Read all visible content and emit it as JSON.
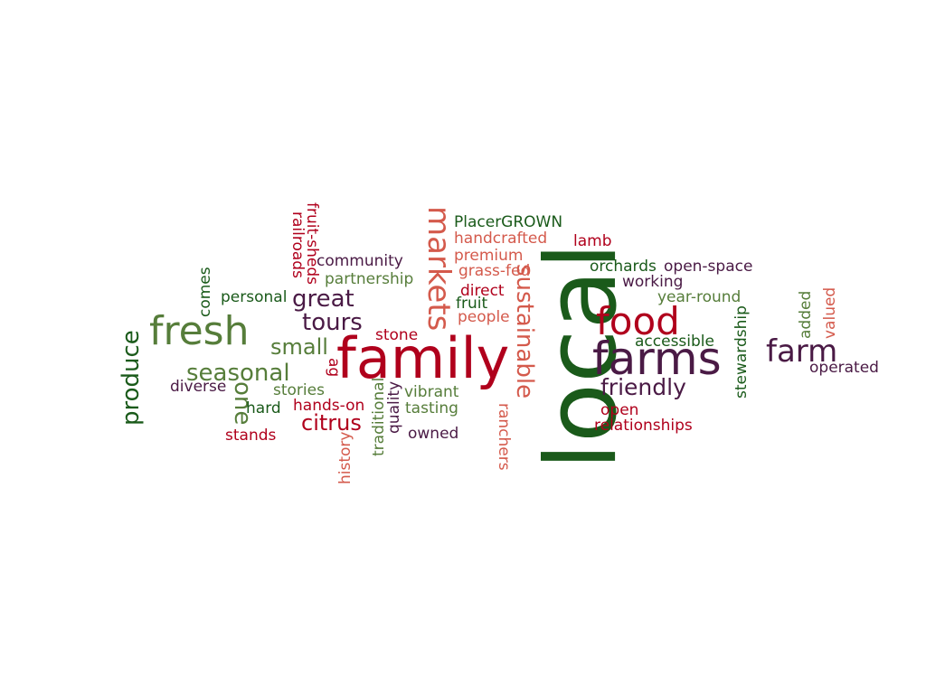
{
  "palette": {
    "green": "#1a5a1a",
    "olive": "#567d3a",
    "crimson": "#b0001c",
    "coral": "#d45a4c",
    "plum": "#4a1a45"
  },
  "words": [
    {
      "id": "local",
      "text": "local",
      "color": "plum_override_green"
    },
    {
      "id": "family",
      "text": "family",
      "color": "crimson"
    },
    {
      "id": "farms",
      "text": "farms",
      "color": "plum"
    },
    {
      "id": "fresh",
      "text": "fresh",
      "color": "olive"
    },
    {
      "id": "food",
      "text": "food",
      "color": "crimson"
    },
    {
      "id": "markets",
      "text": "markets",
      "color": "coral"
    },
    {
      "id": "farm",
      "text": "farm",
      "color": "plum"
    },
    {
      "id": "sustainable",
      "text": "sustainable",
      "color": "coral"
    },
    {
      "id": "produce",
      "text": "produce",
      "color": "green"
    },
    {
      "id": "seasonal",
      "text": "seasonal",
      "color": "olive"
    },
    {
      "id": "great",
      "text": "great",
      "color": "plum"
    },
    {
      "id": "tours",
      "text": "tours",
      "color": "plum"
    },
    {
      "id": "one",
      "text": "one",
      "color": "olive"
    },
    {
      "id": "friendly",
      "text": "friendly",
      "color": "plum"
    },
    {
      "id": "small",
      "text": "small",
      "color": "olive"
    },
    {
      "id": "citrus",
      "text": "citrus",
      "color": "crimson"
    },
    {
      "id": "PlacerGROWN",
      "text": "PlacerGROWN",
      "color": "green"
    },
    {
      "id": "handcrafted",
      "text": "handcrafted",
      "color": "coral"
    },
    {
      "id": "lamb",
      "text": "lamb",
      "color": "crimson"
    },
    {
      "id": "premium",
      "text": "premium",
      "color": "coral"
    },
    {
      "id": "grass-fed",
      "text": "grass-fed",
      "color": "coral"
    },
    {
      "id": "orchards",
      "text": "orchards",
      "color": "green"
    },
    {
      "id": "open-space",
      "text": "open-space",
      "color": "plum"
    },
    {
      "id": "working",
      "text": "working",
      "color": "plum"
    },
    {
      "id": "year-round",
      "text": "year-round",
      "color": "olive"
    },
    {
      "id": "community",
      "text": "community",
      "color": "plum"
    },
    {
      "id": "partnership",
      "text": "partnership",
      "color": "olive"
    },
    {
      "id": "personal",
      "text": "personal",
      "color": "green"
    },
    {
      "id": "comes",
      "text": "comes",
      "color": "green"
    },
    {
      "id": "railroads",
      "text": "railroads",
      "color": "crimson"
    },
    {
      "id": "fruit-sheds",
      "text": "fruit-sheds",
      "color": "crimson"
    },
    {
      "id": "direct",
      "text": "direct",
      "color": "crimson"
    },
    {
      "id": "fruit",
      "text": "fruit",
      "color": "green"
    },
    {
      "id": "people",
      "text": "people",
      "color": "coral"
    },
    {
      "id": "stone",
      "text": "stone",
      "color": "crimson"
    },
    {
      "id": "ag",
      "text": "ag",
      "color": "crimson"
    },
    {
      "id": "accessible",
      "text": "accessible",
      "color": "green"
    },
    {
      "id": "stewardship",
      "text": "stewardship",
      "color": "green"
    },
    {
      "id": "added",
      "text": "added",
      "color": "olive"
    },
    {
      "id": "valued",
      "text": "valued",
      "color": "coral"
    },
    {
      "id": "operated",
      "text": "operated",
      "color": "plum"
    },
    {
      "id": "diverse",
      "text": "diverse",
      "color": "plum"
    },
    {
      "id": "stories",
      "text": "stories",
      "color": "olive"
    },
    {
      "id": "hard",
      "text": "hard",
      "color": "green"
    },
    {
      "id": "hands-on",
      "text": "hands-on",
      "color": "crimson"
    },
    {
      "id": "vibrant",
      "text": "vibrant",
      "color": "olive"
    },
    {
      "id": "tasting",
      "text": "tasting",
      "color": "olive"
    },
    {
      "id": "quality",
      "text": "quality",
      "color": "plum"
    },
    {
      "id": "traditional",
      "text": "traditional",
      "color": "olive"
    },
    {
      "id": "history",
      "text": "history",
      "color": "coral"
    },
    {
      "id": "stands",
      "text": "stands",
      "color": "crimson"
    },
    {
      "id": "owned",
      "text": "owned",
      "color": "plum"
    },
    {
      "id": "ranchers",
      "text": "ranchers",
      "color": "coral"
    },
    {
      "id": "open",
      "text": "open",
      "color": "crimson"
    },
    {
      "id": "relationships",
      "text": "relationships",
      "color": "crimson"
    }
  ]
}
